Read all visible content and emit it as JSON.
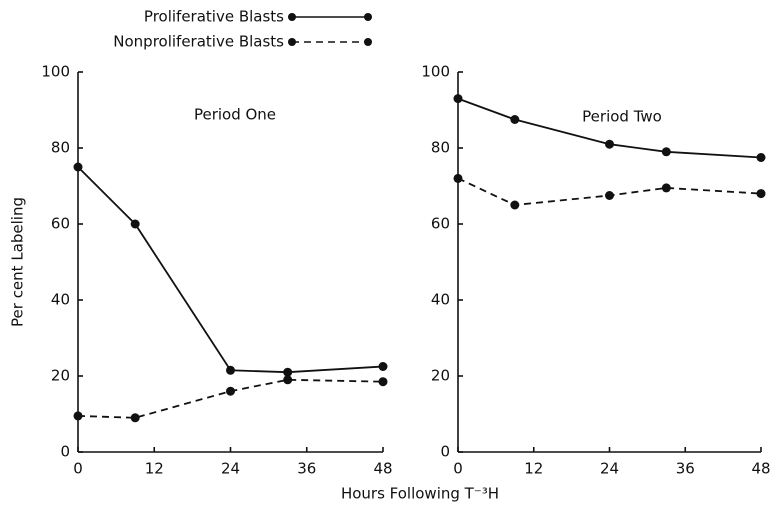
{
  "chart_data": [
    {
      "type": "line",
      "annotation": "Period One",
      "ylabel": "Per cent Labeling",
      "xlabel": "Hours Following T⁻³H",
      "x": [
        0,
        9,
        24,
        33,
        48
      ],
      "xlim": [
        0,
        48
      ],
      "xticks": [
        0,
        12,
        24,
        36,
        48
      ],
      "ylim": [
        0,
        100
      ],
      "yticks": [
        0,
        20,
        40,
        60,
        80,
        100
      ],
      "series": [
        {
          "name": "Proliferative Blasts",
          "color": "#111111",
          "dashed": false,
          "values": [
            75,
            60,
            21.5,
            21,
            22.5
          ]
        },
        {
          "name": "Nonproliferative Blasts",
          "color": "#111111",
          "dashed": true,
          "values": [
            9.5,
            9,
            16,
            19,
            18.5
          ]
        }
      ]
    },
    {
      "type": "line",
      "annotation": "Period Two",
      "x": [
        0,
        9,
        24,
        33,
        48
      ],
      "xlim": [
        0,
        48
      ],
      "xticks": [
        0,
        12,
        24,
        36,
        48
      ],
      "ylim": [
        0,
        100
      ],
      "yticks": [
        0,
        20,
        40,
        60,
        80,
        100
      ],
      "series": [
        {
          "color": "#111111",
          "dashed": false,
          "values": [
            93,
            87.5,
            81,
            79,
            77.5
          ]
        },
        {
          "color": "#111111",
          "dashed": true,
          "values": [
            72,
            65,
            67.5,
            69.5,
            68
          ]
        }
      ]
    }
  ]
}
